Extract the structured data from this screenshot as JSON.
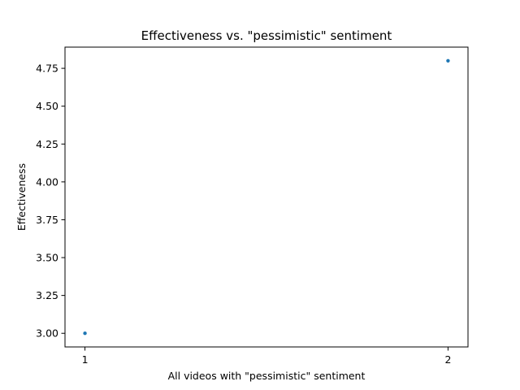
{
  "chart_data": {
    "type": "scatter",
    "title": "Effectiveness vs. \"pessimistic\" sentiment",
    "xlabel": "All videos with \"pessimistic\" sentiment",
    "ylabel": "Effectiveness",
    "x": [
      1,
      2
    ],
    "y": [
      3.0,
      4.8
    ],
    "xlim": [
      0.945,
      2.055
    ],
    "ylim": [
      2.91,
      4.89
    ],
    "xticks": [
      1,
      2
    ],
    "xtick_labels": [
      "1",
      "2"
    ],
    "yticks": [
      3.0,
      3.25,
      3.5,
      3.75,
      4.0,
      4.25,
      4.5,
      4.75
    ],
    "ytick_labels": [
      "3.00",
      "3.25",
      "3.50",
      "3.75",
      "4.00",
      "4.25",
      "4.50",
      "4.75"
    ],
    "marker_color": "#1f77b4",
    "grid": false,
    "legend": "none"
  }
}
